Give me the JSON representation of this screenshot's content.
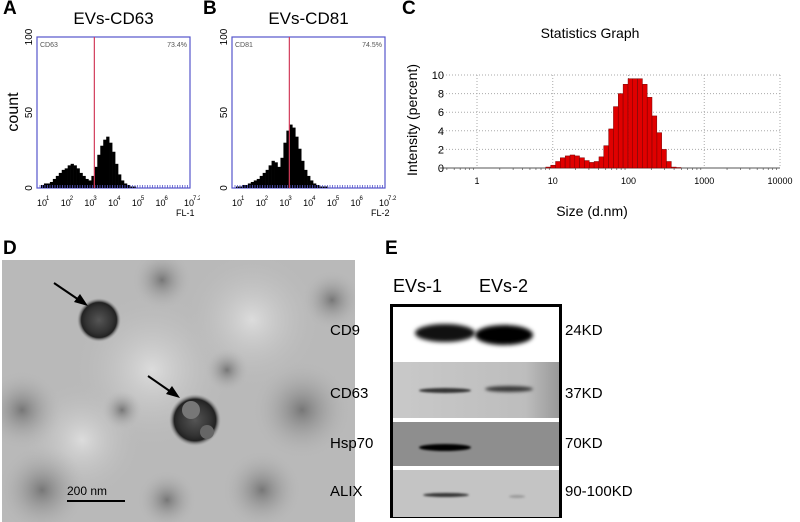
{
  "panels": {
    "A": {
      "letter": "A",
      "title": "EVs-CD63",
      "marker": "CD63",
      "percent": "73.4%",
      "ylabel": "count",
      "xlabel": "FL-1"
    },
    "B": {
      "letter": "B",
      "title": "EVs-CD81",
      "marker": "CD81",
      "percent": "74.5%",
      "xlabel": "FL-2"
    },
    "C": {
      "letter": "C"
    },
    "D": {
      "letter": "D",
      "scale_bar": "200 nm"
    },
    "E": {
      "letter": "E",
      "lanes": [
        "EVs-1",
        "EVs-2"
      ],
      "rows": [
        {
          "protein": "CD9",
          "size": "24KD"
        },
        {
          "protein": "CD63",
          "size": "37KD"
        },
        {
          "protein": "Hsp70",
          "size": "70KD"
        },
        {
          "protein": "ALIX",
          "size": "90-100KD"
        }
      ]
    }
  },
  "chart_data": [
    {
      "type": "bar",
      "name": "flow-histogram-A",
      "title": "EVs-CD63",
      "xlabel": "FL-1",
      "ylabel": "count",
      "xscale": "log10",
      "xlim_log": [
        1,
        7.2
      ],
      "ylim": [
        0,
        100
      ],
      "yticks": [
        "0",
        "50",
        "100"
      ],
      "xticks": [
        {
          "base": "10",
          "exp": "1"
        },
        {
          "base": "10",
          "exp": "2"
        },
        {
          "base": "10",
          "exp": "3"
        },
        {
          "base": "10",
          "exp": "4"
        },
        {
          "base": "10",
          "exp": "5"
        },
        {
          "base": "10",
          "exp": "6"
        },
        {
          "base": "10",
          "exp": "7.2"
        }
      ],
      "gate_log": 3.25,
      "bin_start_log": 1.0,
      "bin_step_log": 0.125,
      "counts": [
        2,
        3,
        3,
        4,
        6,
        8,
        10,
        12,
        13,
        15,
        16,
        15,
        13,
        10,
        8,
        6,
        5,
        8,
        14,
        22,
        28,
        32,
        34,
        30,
        24,
        16,
        9,
        5,
        3,
        2,
        1,
        1,
        0
      ]
    },
    {
      "type": "bar",
      "name": "flow-histogram-B",
      "title": "EVs-CD81",
      "xlabel": "FL-2",
      "xscale": "log10",
      "xlim_log": [
        1,
        7.2
      ],
      "ylim": [
        0,
        100
      ],
      "yticks": [
        "0",
        "50",
        "100"
      ],
      "xticks": [
        {
          "base": "10",
          "exp": "1"
        },
        {
          "base": "10",
          "exp": "2"
        },
        {
          "base": "10",
          "exp": "3"
        },
        {
          "base": "10",
          "exp": "4"
        },
        {
          "base": "10",
          "exp": "5"
        },
        {
          "base": "10",
          "exp": "6"
        },
        {
          "base": "10",
          "exp": "7.2"
        }
      ],
      "gate_log": 3.25,
      "bin_start_log": 1.0,
      "bin_step_log": 0.125,
      "counts": [
        1,
        1,
        2,
        2,
        3,
        4,
        5,
        6,
        8,
        10,
        12,
        15,
        18,
        17,
        14,
        20,
        30,
        38,
        42,
        40,
        34,
        26,
        18,
        12,
        8,
        5,
        3,
        2,
        1,
        1,
        1,
        0,
        0
      ]
    },
    {
      "type": "bar",
      "name": "size-distribution",
      "title": "Statistics Graph",
      "xlabel": "Size (d.nm)",
      "ylabel": "Intensity (percent)",
      "xscale": "log10",
      "xlim": [
        1,
        10000
      ],
      "ylim": [
        0,
        10
      ],
      "yticks": [
        "0",
        "2",
        "4",
        "6",
        "8",
        "10"
      ],
      "xticks": [
        "1",
        "10",
        "100",
        "1000",
        "10000"
      ],
      "grid": true,
      "x": [
        8.7,
        10.1,
        11.7,
        13.5,
        15.7,
        18.2,
        21,
        24.4,
        28.2,
        32.7,
        37.8,
        43.8,
        50.7,
        58.8,
        68,
        78.8,
        91.3,
        106,
        122,
        142,
        164,
        190,
        220,
        255,
        295,
        342,
        396,
        459
      ],
      "values": [
        0.1,
        0.3,
        0.7,
        1.1,
        1.3,
        1.4,
        1.3,
        1.1,
        0.8,
        0.6,
        0.7,
        1.2,
        2.4,
        4.2,
        6.6,
        8.0,
        9.0,
        9.6,
        9.6,
        9.6,
        9.0,
        7.6,
        5.6,
        3.8,
        2.0,
        0.7,
        0.1,
        0.05
      ]
    }
  ],
  "colors": {
    "frame": "#5555cc",
    "gate": "#d23c5a",
    "bar_fill": "#e00000",
    "bar_stroke": "#7a0000"
  }
}
